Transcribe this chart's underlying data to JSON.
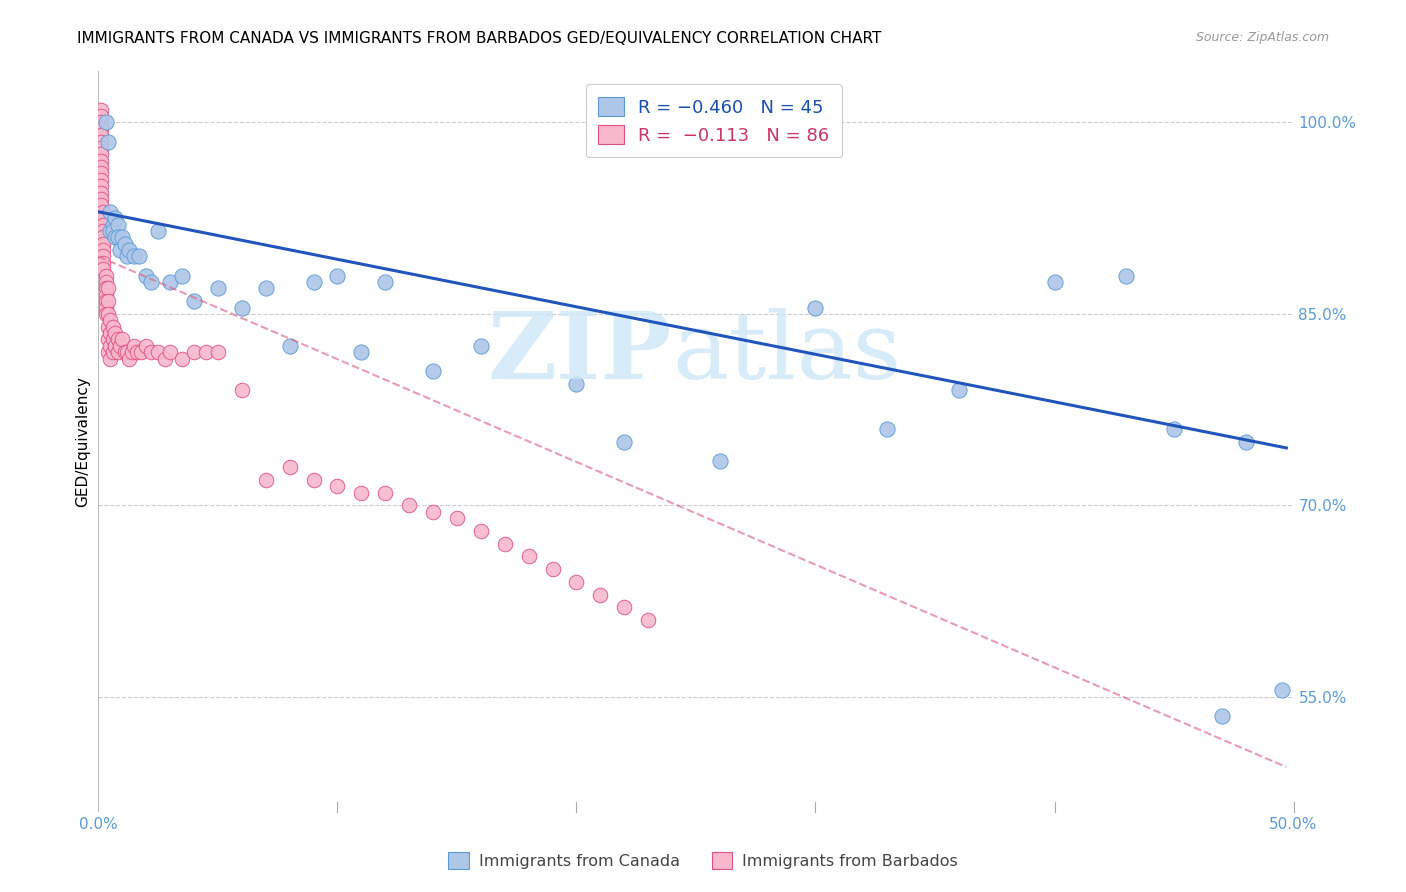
{
  "title": "IMMIGRANTS FROM CANADA VS IMMIGRANTS FROM BARBADOS GED/EQUIVALENCY CORRELATION CHART",
  "source": "Source: ZipAtlas.com",
  "ylabel": "GED/Equivalency",
  "canada_color": "#aec6e8",
  "canada_edge_color": "#5b9bd5",
  "barbados_color": "#f7b8cc",
  "barbados_edge_color": "#e05080",
  "trendline_canada_color": "#2255bb",
  "trendline_barbados_color": "#dd6688",
  "xlim": [
    0.0,
    0.5
  ],
  "ylim": [
    0.46,
    1.04
  ],
  "y_ticks": [
    0.55,
    0.7,
    0.85,
    1.0
  ],
  "y_tick_labels": [
    "55.0%",
    "70.0%",
    "85.0%",
    "100.0%"
  ],
  "x_ticks": [
    0.0,
    0.1,
    0.2,
    0.3,
    0.4,
    0.5
  ],
  "canada_trend_x": [
    0.0,
    0.497
  ],
  "canada_trend_y": [
    0.93,
    0.745
  ],
  "barbados_trend_x": [
    0.0,
    0.497
  ],
  "barbados_trend_y": [
    0.895,
    0.495
  ],
  "canada_x": [
    0.003,
    0.004,
    0.005,
    0.005,
    0.006,
    0.006,
    0.007,
    0.007,
    0.008,
    0.008,
    0.009,
    0.01,
    0.011,
    0.012,
    0.013,
    0.015,
    0.017,
    0.02,
    0.022,
    0.025,
    0.03,
    0.035,
    0.04,
    0.05,
    0.06,
    0.07,
    0.08,
    0.09,
    0.1,
    0.11,
    0.12,
    0.14,
    0.16,
    0.2,
    0.22,
    0.26,
    0.3,
    0.33,
    0.36,
    0.4,
    0.43,
    0.45,
    0.47,
    0.48,
    0.495
  ],
  "canada_y": [
    1.0,
    0.985,
    0.93,
    0.915,
    0.92,
    0.915,
    0.925,
    0.91,
    0.92,
    0.91,
    0.9,
    0.91,
    0.905,
    0.895,
    0.9,
    0.895,
    0.895,
    0.88,
    0.875,
    0.915,
    0.875,
    0.88,
    0.86,
    0.87,
    0.855,
    0.87,
    0.825,
    0.875,
    0.88,
    0.82,
    0.875,
    0.805,
    0.825,
    0.795,
    0.75,
    0.735,
    0.855,
    0.76,
    0.79,
    0.875,
    0.88,
    0.76,
    0.535,
    0.75,
    0.555
  ],
  "barbados_x": [
    0.001,
    0.001,
    0.001,
    0.001,
    0.001,
    0.001,
    0.001,
    0.001,
    0.001,
    0.001,
    0.001,
    0.001,
    0.001,
    0.001,
    0.001,
    0.001,
    0.002,
    0.002,
    0.002,
    0.002,
    0.002,
    0.002,
    0.002,
    0.002,
    0.002,
    0.002,
    0.003,
    0.003,
    0.003,
    0.003,
    0.003,
    0.003,
    0.003,
    0.004,
    0.004,
    0.004,
    0.004,
    0.004,
    0.004,
    0.005,
    0.005,
    0.005,
    0.005,
    0.006,
    0.006,
    0.006,
    0.007,
    0.007,
    0.008,
    0.008,
    0.009,
    0.01,
    0.011,
    0.012,
    0.013,
    0.014,
    0.015,
    0.016,
    0.018,
    0.02,
    0.022,
    0.025,
    0.028,
    0.03,
    0.035,
    0.04,
    0.045,
    0.05,
    0.06,
    0.07,
    0.08,
    0.09,
    0.1,
    0.11,
    0.12,
    0.13,
    0.14,
    0.15,
    0.16,
    0.17,
    0.18,
    0.19,
    0.2,
    0.21,
    0.22,
    0.23
  ],
  "barbados_y": [
    1.01,
    1.005,
    1.0,
    0.995,
    0.99,
    0.985,
    0.98,
    0.975,
    0.97,
    0.965,
    0.96,
    0.955,
    0.95,
    0.945,
    0.94,
    0.935,
    0.93,
    0.925,
    0.92,
    0.915,
    0.91,
    0.905,
    0.9,
    0.895,
    0.89,
    0.885,
    0.88,
    0.875,
    0.87,
    0.865,
    0.86,
    0.855,
    0.85,
    0.87,
    0.86,
    0.85,
    0.84,
    0.83,
    0.82,
    0.845,
    0.835,
    0.825,
    0.815,
    0.84,
    0.83,
    0.82,
    0.835,
    0.825,
    0.83,
    0.82,
    0.825,
    0.83,
    0.82,
    0.82,
    0.815,
    0.82,
    0.825,
    0.82,
    0.82,
    0.825,
    0.82,
    0.82,
    0.815,
    0.82,
    0.815,
    0.82,
    0.82,
    0.82,
    0.79,
    0.72,
    0.73,
    0.72,
    0.715,
    0.71,
    0.71,
    0.7,
    0.695,
    0.69,
    0.68,
    0.67,
    0.66,
    0.65,
    0.64,
    0.63,
    0.62,
    0.61
  ]
}
